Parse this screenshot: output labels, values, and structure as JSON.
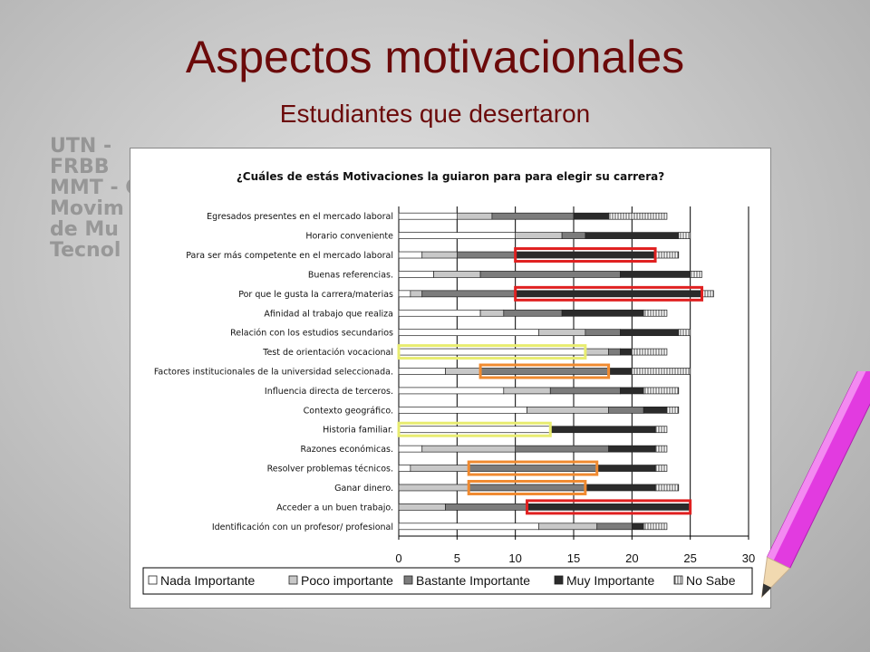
{
  "slide": {
    "title": "Aspectos motivacionales",
    "subtitle": "Estudiantes que desertaron",
    "title_color": "#6b0a0a"
  },
  "background_logo": {
    "lines": [
      "UTN - FRBB",
      "MMT - C",
      "Movim",
      "de Mu",
      "Tecnol"
    ]
  },
  "chart_data": {
    "type": "bar",
    "orientation": "horizontal",
    "stacked": true,
    "title": "¿Cuáles de estás Motivaciones la guiaron para para elegir su carrera?",
    "categories": [
      "Egresados presentes en el mercado laboral",
      "Horario conveniente",
      "Para ser más competente en el mercado laboral",
      "Buenas referencias.",
      "Por que le gusta la carrera/materias",
      "Afinidad al trabajo que realiza",
      "Relación con los estudios secundarios",
      "Test de orientación vocacional",
      "Factores institucionales de la universidad seleccionada.",
      "Influencia directa de terceros.",
      "Contexto geográfico.",
      "Historia familiar.",
      "Razones económicas.",
      "Resolver problemas técnicos.",
      "Ganar dinero.",
      "Acceder a un buen trabajo.",
      "Identificación con un profesor/ profesional"
    ],
    "series": [
      {
        "name": "Nada Importante",
        "color": "#ffffff",
        "values": [
          5,
          10,
          2,
          3,
          1,
          7,
          12,
          16,
          4,
          9,
          11,
          13,
          2,
          1,
          0,
          0,
          12
        ]
      },
      {
        "name": "Poco importante",
        "color": "#c8c8c8",
        "values": [
          3,
          4,
          3,
          4,
          1,
          2,
          4,
          2,
          3,
          4,
          7,
          0,
          8,
          5,
          6,
          4,
          5
        ]
      },
      {
        "name": "Bastante Importante",
        "color": "#7c7c7c",
        "values": [
          7,
          2,
          5,
          12,
          8,
          5,
          3,
          1,
          11,
          6,
          3,
          0,
          8,
          11,
          10,
          7,
          3
        ]
      },
      {
        "name": "Muy Importante",
        "color": "#2b2b2b",
        "values": [
          3,
          8,
          12,
          6,
          16,
          7,
          5,
          1,
          2,
          2,
          2,
          9,
          4,
          5,
          6,
          14,
          1
        ]
      },
      {
        "name": "No Sabe",
        "color": "#ffffff",
        "hatched": true,
        "values": [
          5,
          1,
          2,
          1,
          1,
          2,
          1,
          3,
          5,
          3,
          1,
          1,
          1,
          1,
          2,
          0,
          2
        ]
      }
    ],
    "xlim": [
      0,
      30
    ],
    "xticks": [
      0,
      5,
      10,
      15,
      20,
      25,
      30
    ],
    "grid": "vertical major gridlines",
    "legend": "bottom",
    "highlights": [
      {
        "category_index": 2,
        "from": 10,
        "to": 22,
        "color": "#e02020"
      },
      {
        "category_index": 4,
        "from": 10,
        "to": 26,
        "color": "#e02020"
      },
      {
        "category_index": 7,
        "from": 0,
        "to": 16,
        "color": "#e8ec70"
      },
      {
        "category_index": 8,
        "from": 7,
        "to": 18,
        "color": "#f08a30"
      },
      {
        "category_index": 11,
        "from": 0,
        "to": 13,
        "color": "#e8ec70"
      },
      {
        "category_index": 13,
        "from": 6,
        "to": 17,
        "color": "#f08a30"
      },
      {
        "category_index": 14,
        "from": 6,
        "to": 16,
        "color": "#f08a30"
      },
      {
        "category_index": 15,
        "from": 11,
        "to": 25,
        "color": "#e02020"
      }
    ]
  }
}
